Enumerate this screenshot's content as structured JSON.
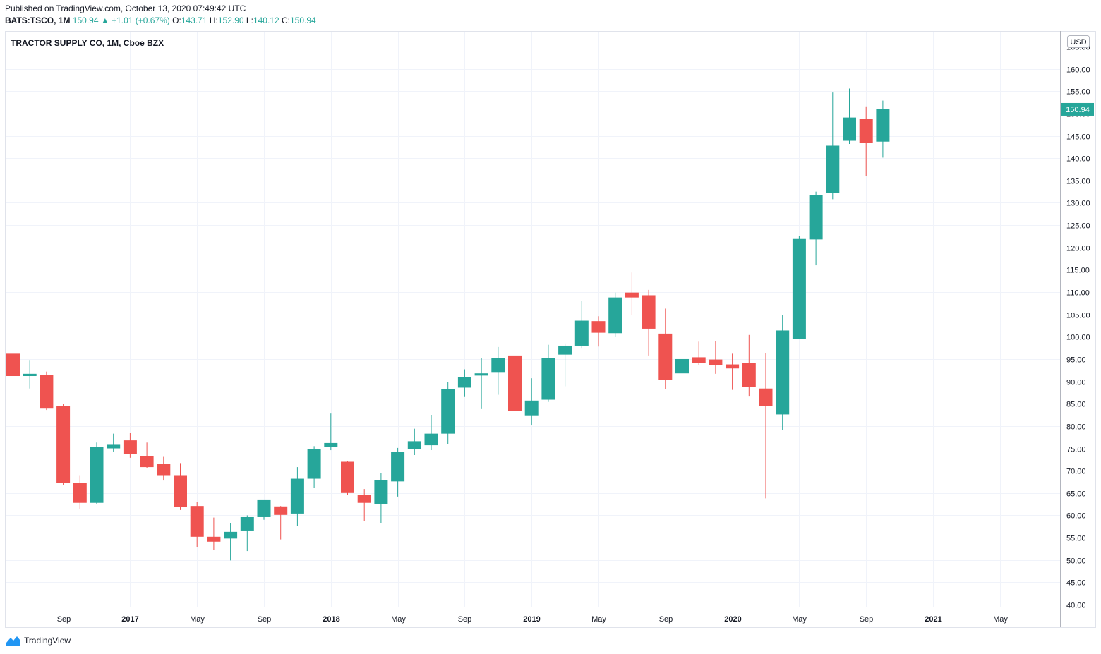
{
  "header": {
    "published": "Published on TradingView.com, October 13, 2020 07:49:42 UTC",
    "symbol": "BATS:TSCO, 1M",
    "last": "150.94",
    "change": "+1.01 (+0.67%)",
    "o_label": "O:",
    "o": "143.71",
    "h_label": "H:",
    "h": "152.90",
    "l_label": "L:",
    "l": "140.12",
    "c_label": "C:",
    "c": "150.94",
    "up_arrow": "▲"
  },
  "footer": {
    "brand": "TradingView"
  },
  "colors": {
    "up": "#26a69a",
    "down": "#ef5350",
    "grid": "#f0f3fa",
    "axis": "#b2b5be"
  },
  "chart_data": {
    "type": "candlestick",
    "title": "TRACTOR SUPPLY CO, 1M, Cboe BZX",
    "currency": "USD",
    "last_price_label": "150.94",
    "ylim": [
      40,
      165
    ],
    "yticks": [
      "40.00",
      "45.00",
      "50.00",
      "55.00",
      "60.00",
      "65.00",
      "70.00",
      "75.00",
      "80.00",
      "85.00",
      "90.00",
      "95.00",
      "100.00",
      "105.00",
      "110.00",
      "115.00",
      "120.00",
      "125.00",
      "130.00",
      "135.00",
      "140.00",
      "145.00",
      "150.00",
      "155.00",
      "160.00",
      "165.00"
    ],
    "xticks": [
      {
        "label": "Sep",
        "month": "2016-09",
        "year": false
      },
      {
        "label": "2017",
        "month": "2017-01",
        "year": true
      },
      {
        "label": "May",
        "month": "2017-05",
        "year": false
      },
      {
        "label": "Sep",
        "month": "2017-09",
        "year": false
      },
      {
        "label": "2018",
        "month": "2018-01",
        "year": true
      },
      {
        "label": "May",
        "month": "2018-05",
        "year": false
      },
      {
        "label": "Sep",
        "month": "2018-09",
        "year": false
      },
      {
        "label": "2019",
        "month": "2019-01",
        "year": true
      },
      {
        "label": "May",
        "month": "2019-05",
        "year": false
      },
      {
        "label": "Sep",
        "month": "2019-09",
        "year": false
      },
      {
        "label": "2020",
        "month": "2020-01",
        "year": true
      },
      {
        "label": "May",
        "month": "2020-05",
        "year": false
      },
      {
        "label": "Sep",
        "month": "2020-09",
        "year": false
      },
      {
        "label": "2021",
        "month": "2021-01",
        "year": true
      },
      {
        "label": "May",
        "month": "2021-05",
        "year": false
      }
    ],
    "candles": [
      {
        "t": "2016-06",
        "o": 96.2,
        "h": 97.0,
        "l": 89.5,
        "c": 91.2
      },
      {
        "t": "2016-07",
        "o": 91.2,
        "h": 94.8,
        "l": 88.4,
        "c": 91.7
      },
      {
        "t": "2016-08",
        "o": 91.4,
        "h": 92.2,
        "l": 83.6,
        "c": 83.9
      },
      {
        "t": "2016-09",
        "o": 84.5,
        "h": 85.0,
        "l": 66.8,
        "c": 67.3
      },
      {
        "t": "2016-10",
        "o": 67.2,
        "h": 69.0,
        "l": 61.5,
        "c": 62.8
      },
      {
        "t": "2016-11",
        "o": 62.8,
        "h": 76.3,
        "l": 62.6,
        "c": 75.3
      },
      {
        "t": "2016-12",
        "o": 75.0,
        "h": 78.3,
        "l": 74.3,
        "c": 75.8
      },
      {
        "t": "2017-01",
        "o": 76.8,
        "h": 78.4,
        "l": 72.9,
        "c": 73.8
      },
      {
        "t": "2017-02",
        "o": 73.2,
        "h": 76.3,
        "l": 70.5,
        "c": 70.8
      },
      {
        "t": "2017-03",
        "o": 71.6,
        "h": 73.1,
        "l": 67.8,
        "c": 69.0
      },
      {
        "t": "2017-04",
        "o": 69.0,
        "h": 71.7,
        "l": 61.2,
        "c": 61.9
      },
      {
        "t": "2017-05",
        "o": 62.1,
        "h": 63.0,
        "l": 52.9,
        "c": 55.2
      },
      {
        "t": "2017-06",
        "o": 55.2,
        "h": 59.5,
        "l": 52.2,
        "c": 54.1
      },
      {
        "t": "2017-07",
        "o": 54.8,
        "h": 58.3,
        "l": 49.9,
        "c": 56.3
      },
      {
        "t": "2017-08",
        "o": 56.6,
        "h": 60.0,
        "l": 52.0,
        "c": 59.6
      },
      {
        "t": "2017-09",
        "o": 59.6,
        "h": 63.3,
        "l": 59.0,
        "c": 63.4
      },
      {
        "t": "2017-10",
        "o": 62.0,
        "h": 62.1,
        "l": 54.6,
        "c": 60.1
      },
      {
        "t": "2017-11",
        "o": 60.4,
        "h": 70.8,
        "l": 57.7,
        "c": 68.2
      },
      {
        "t": "2017-12",
        "o": 68.2,
        "h": 75.5,
        "l": 66.2,
        "c": 74.8
      },
      {
        "t": "2018-01",
        "o": 75.3,
        "h": 82.8,
        "l": 74.6,
        "c": 76.2
      },
      {
        "t": "2018-02",
        "o": 72.0,
        "h": 72.1,
        "l": 64.6,
        "c": 65.0
      },
      {
        "t": "2018-03",
        "o": 64.6,
        "h": 65.9,
        "l": 58.8,
        "c": 62.8
      },
      {
        "t": "2018-04",
        "o": 62.6,
        "h": 69.4,
        "l": 58.2,
        "c": 67.9
      },
      {
        "t": "2018-05",
        "o": 67.6,
        "h": 75.1,
        "l": 64.2,
        "c": 74.2
      },
      {
        "t": "2018-06",
        "o": 74.9,
        "h": 79.4,
        "l": 73.5,
        "c": 76.6
      },
      {
        "t": "2018-07",
        "o": 75.7,
        "h": 82.5,
        "l": 74.6,
        "c": 78.3
      },
      {
        "t": "2018-08",
        "o": 78.3,
        "h": 89.8,
        "l": 75.9,
        "c": 88.3
      },
      {
        "t": "2018-09",
        "o": 88.6,
        "h": 92.7,
        "l": 86.5,
        "c": 91.0
      },
      {
        "t": "2018-10",
        "o": 91.3,
        "h": 95.2,
        "l": 83.8,
        "c": 91.8
      },
      {
        "t": "2018-11",
        "o": 92.1,
        "h": 97.7,
        "l": 87.0,
        "c": 95.2
      },
      {
        "t": "2018-12",
        "o": 95.8,
        "h": 96.6,
        "l": 78.6,
        "c": 83.4
      },
      {
        "t": "2019-01",
        "o": 82.4,
        "h": 90.7,
        "l": 80.3,
        "c": 85.7
      },
      {
        "t": "2019-02",
        "o": 85.9,
        "h": 98.2,
        "l": 85.4,
        "c": 95.3
      },
      {
        "t": "2019-03",
        "o": 96.0,
        "h": 98.5,
        "l": 88.9,
        "c": 98.0
      },
      {
        "t": "2019-04",
        "o": 98.0,
        "h": 108.1,
        "l": 97.5,
        "c": 103.6
      },
      {
        "t": "2019-05",
        "o": 103.5,
        "h": 104.6,
        "l": 97.8,
        "c": 100.9
      },
      {
        "t": "2019-06",
        "o": 100.8,
        "h": 109.9,
        "l": 100.0,
        "c": 108.8
      },
      {
        "t": "2019-07",
        "o": 109.9,
        "h": 114.4,
        "l": 104.8,
        "c": 108.8
      },
      {
        "t": "2019-08",
        "o": 109.3,
        "h": 110.5,
        "l": 95.8,
        "c": 101.8
      },
      {
        "t": "2019-09",
        "o": 100.7,
        "h": 106.3,
        "l": 88.3,
        "c": 90.4
      },
      {
        "t": "2019-10",
        "o": 91.8,
        "h": 98.9,
        "l": 89.0,
        "c": 95.0
      },
      {
        "t": "2019-11",
        "o": 95.4,
        "h": 98.9,
        "l": 93.7,
        "c": 94.2
      },
      {
        "t": "2019-12",
        "o": 94.9,
        "h": 99.1,
        "l": 91.7,
        "c": 93.6
      },
      {
        "t": "2020-01",
        "o": 93.8,
        "h": 96.2,
        "l": 88.1,
        "c": 92.9
      },
      {
        "t": "2020-02",
        "o": 94.2,
        "h": 100.4,
        "l": 86.6,
        "c": 88.7
      },
      {
        "t": "2020-03",
        "o": 88.4,
        "h": 96.4,
        "l": 63.8,
        "c": 84.5
      },
      {
        "t": "2020-04",
        "o": 82.6,
        "h": 104.9,
        "l": 79.1,
        "c": 101.4
      },
      {
        "t": "2020-05",
        "o": 99.5,
        "h": 122.5,
        "l": 99.5,
        "c": 121.9
      },
      {
        "t": "2020-06",
        "o": 121.8,
        "h": 132.5,
        "l": 116.0,
        "c": 131.7
      },
      {
        "t": "2020-07",
        "o": 132.2,
        "h": 154.7,
        "l": 130.8,
        "c": 142.8
      },
      {
        "t": "2020-08",
        "o": 143.9,
        "h": 155.6,
        "l": 143.2,
        "c": 149.1
      },
      {
        "t": "2020-09",
        "o": 148.8,
        "h": 151.6,
        "l": 136.0,
        "c": 143.5
      },
      {
        "t": "2020-10",
        "o": 143.71,
        "h": 152.9,
        "l": 140.12,
        "c": 150.94
      }
    ]
  }
}
